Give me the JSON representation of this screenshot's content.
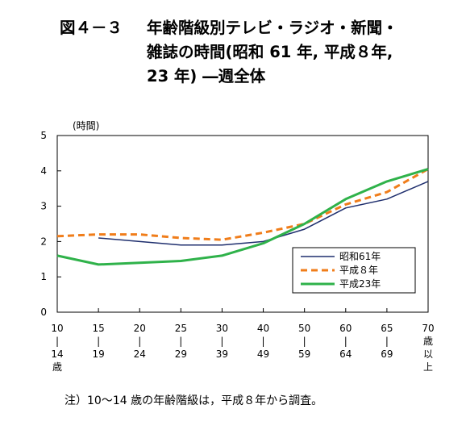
{
  "title": {
    "number": "図４－３",
    "line1": "年齢階級別テレビ・ラジオ・新聞・",
    "line2": "雑誌の時間(昭和 61 年, 平成８年,",
    "line3": "23 年) ―週全体"
  },
  "footnote": "注）10～14 歳の年齢階級は，平成８年から調査。",
  "chart_data": {
    "type": "line",
    "unit_label": "(時間)",
    "ylim": [
      0,
      5
    ],
    "yticks": [
      "0",
      "1",
      "2",
      "3",
      "4",
      "5"
    ],
    "categories": [
      [
        "10",
        "|",
        "14",
        "歳"
      ],
      [
        "15",
        "|",
        "19"
      ],
      [
        "20",
        "|",
        "24"
      ],
      [
        "25",
        "|",
        "29"
      ],
      [
        "30",
        "|",
        "39"
      ],
      [
        "40",
        "|",
        "49"
      ],
      [
        "50",
        "|",
        "59"
      ],
      [
        "60",
        "|",
        "64"
      ],
      [
        "65",
        "|",
        "69"
      ],
      [
        "70",
        "歳",
        "以",
        "上"
      ]
    ],
    "legend_position": "lower-right",
    "grid": false,
    "series": [
      {
        "name": "昭和61年",
        "color": "#1f2f6e",
        "dash": "solid",
        "values": [
          null,
          2.1,
          2.0,
          1.9,
          1.9,
          2.0,
          2.35,
          2.95,
          3.2,
          3.7
        ]
      },
      {
        "name": "平成８年",
        "color": "#f07d1a",
        "dash": "dashed",
        "values": [
          2.15,
          2.2,
          2.2,
          2.1,
          2.05,
          2.25,
          2.5,
          3.05,
          3.4,
          4.05
        ]
      },
      {
        "name": "平成23年",
        "color": "#2fb24a",
        "dash": "solid",
        "values": [
          1.6,
          1.35,
          1.4,
          1.45,
          1.6,
          1.95,
          2.5,
          3.2,
          3.7,
          4.05
        ]
      }
    ]
  }
}
